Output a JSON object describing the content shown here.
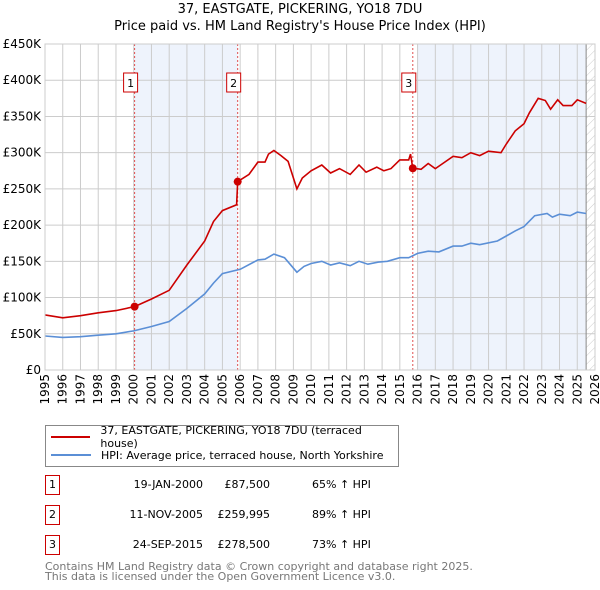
{
  "title": "37, EASTGATE, PICKERING, YO18 7DU",
  "subtitle": "Price paid vs. HM Land Registry's House Price Index (HPI)",
  "chart_data": {
    "type": "line",
    "xlim": [
      1995,
      2026
    ],
    "ylim": [
      0,
      450000
    ],
    "yticks": [
      0,
      50000,
      100000,
      150000,
      200000,
      250000,
      300000,
      350000,
      400000,
      450000
    ],
    "ytick_labels": [
      "£0",
      "£50K",
      "£100K",
      "£150K",
      "£200K",
      "£250K",
      "£300K",
      "£350K",
      "£400K",
      "£450K"
    ],
    "xticks": [
      1995,
      1996,
      1997,
      1998,
      1999,
      2000,
      2001,
      2002,
      2003,
      2004,
      2005,
      2006,
      2007,
      2008,
      2009,
      2010,
      2011,
      2012,
      2013,
      2014,
      2015,
      2016,
      2017,
      2018,
      2019,
      2020,
      2021,
      2022,
      2023,
      2024,
      2025,
      2026
    ],
    "grid": true,
    "shaded_ranges": [
      [
        2000.05,
        2005.86
      ],
      [
        2016.0,
        2025.5
      ]
    ],
    "hatched_from": 2025.5,
    "series": [
      {
        "name": "37, EASTGATE, PICKERING, YO18 7DU (terraced house)",
        "color": "#cc0000",
        "x": [
          1995,
          1996,
          1997,
          1998,
          1999,
          2000.05,
          2001,
          2002,
          2003,
          2004,
          2004.5,
          2005,
          2005.8,
          2005.86,
          2006.5,
          2007,
          2007.4,
          2007.6,
          2007.9,
          2008.3,
          2008.7,
          2009.2,
          2009.5,
          2010,
          2010.6,
          2011.1,
          2011.6,
          2012.2,
          2012.7,
          2013.1,
          2013.7,
          2014.1,
          2014.5,
          2015,
          2015.5,
          2015.6,
          2015.73,
          2016.2,
          2016.6,
          2017,
          2017.3,
          2018,
          2018.5,
          2019,
          2019.5,
          2020,
          2020.7,
          2021,
          2021.5,
          2022,
          2022.3,
          2022.8,
          2023.2,
          2023.5,
          2023.9,
          2024.2,
          2024.7,
          2025,
          2025.5
        ],
        "y": [
          76000,
          72000,
          75000,
          79000,
          82000,
          87500,
          98000,
          110000,
          145000,
          178000,
          205000,
          220000,
          228000,
          259995,
          270000,
          287000,
          287000,
          298000,
          303000,
          296000,
          288000,
          250000,
          265000,
          275000,
          283000,
          272000,
          278000,
          270000,
          283000,
          273000,
          280000,
          275000,
          278000,
          290000,
          290000,
          298000,
          278500,
          277000,
          285000,
          278000,
          283000,
          295000,
          293000,
          300000,
          296000,
          302000,
          300000,
          312000,
          330000,
          340000,
          355000,
          375000,
          372000,
          360000,
          373000,
          365000,
          365000,
          373000,
          368000
        ]
      },
      {
        "name": "HPI: Average price, terraced house, North Yorkshire",
        "color": "#5b8fd6",
        "x": [
          1995,
          1996,
          1997,
          1998,
          1999,
          2000,
          2001,
          2002,
          2003,
          2004,
          2004.5,
          2005,
          2006,
          2007,
          2007.4,
          2007.9,
          2008.5,
          2009.2,
          2009.6,
          2010,
          2010.6,
          2011.1,
          2011.6,
          2012.2,
          2012.7,
          2013.2,
          2013.8,
          2014.3,
          2015,
          2015.5,
          2016,
          2016.6,
          2017.2,
          2018,
          2018.5,
          2019,
          2019.5,
          2020.5,
          2021,
          2021.5,
          2022,
          2022.6,
          2023.3,
          2023.6,
          2024,
          2024.6,
          2025,
          2025.5
        ],
        "y": [
          47000,
          45000,
          46000,
          48000,
          50000,
          54000,
          60000,
          67000,
          85000,
          105000,
          120000,
          133000,
          139000,
          152000,
          153000,
          160000,
          155000,
          135000,
          143000,
          147000,
          150000,
          145000,
          148000,
          144000,
          150000,
          146000,
          149000,
          150000,
          155000,
          155000,
          161000,
          164000,
          163000,
          171000,
          171000,
          175000,
          173000,
          178000,
          185000,
          192000,
          198000,
          213000,
          216000,
          211000,
          215000,
          213000,
          218000,
          216000
        ]
      }
    ],
    "sales": [
      {
        "num": "1",
        "x": 2000.05,
        "y": 87500,
        "date": "19-JAN-2000",
        "price": "£87,500",
        "hpi": "65% ↑ HPI"
      },
      {
        "num": "2",
        "x": 2005.86,
        "y": 259995,
        "date": "11-NOV-2005",
        "price": "£259,995",
        "hpi": "89% ↑ HPI"
      },
      {
        "num": "3",
        "x": 2015.73,
        "y": 278500,
        "date": "24-SEP-2015",
        "price": "£278,500",
        "hpi": "73% ↑ HPI"
      }
    ]
  },
  "legend": {
    "red": "37, EASTGATE, PICKERING, YO18 7DU (terraced house)",
    "blue": "HPI: Average price, terraced house, North Yorkshire"
  },
  "footer": {
    "line1": "Contains HM Land Registry data © Crown copyright and database right 2025.",
    "line2": "This data is licensed under the Open Government Licence v3.0."
  }
}
